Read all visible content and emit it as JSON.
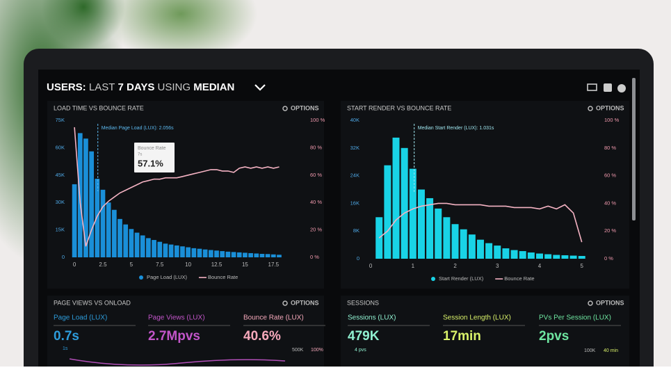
{
  "header": {
    "title_parts": [
      "USERS:",
      "LAST",
      "7 DAYS",
      "USING",
      "MEDIAN"
    ]
  },
  "chart_data": [
    {
      "type": "bar",
      "title": "LOAD TIME VS BOUNCE RATE",
      "options": "OPTIONS",
      "x": [
        0,
        0.5,
        1,
        1.5,
        2,
        2.5,
        3,
        3.5,
        4,
        4.5,
        5,
        5.5,
        6,
        6.5,
        7,
        7.5,
        8,
        8.5,
        9,
        9.5,
        10,
        10.5,
        11,
        11.5,
        12,
        12.5,
        13,
        13.5,
        14,
        14.5,
        15,
        15.5,
        16,
        16.5,
        17,
        17.5,
        18
      ],
      "xlim": [
        -0.25,
        20.05
      ],
      "xticks": [
        0,
        2.5,
        5,
        7.5,
        10,
        12.5,
        15,
        17.5
      ],
      "ylim": [
        0,
        75000
      ],
      "yticks": [
        0,
        {
          "value": 15000,
          "label": "15K"
        },
        {
          "value": 30000,
          "label": "30K"
        },
        {
          "value": 45000,
          "label": "45K"
        },
        {
          "value": 60000,
          "label": "60K"
        },
        {
          "value": 75000,
          "label": "75K"
        }
      ],
      "y2lim": [
        0,
        100
      ],
      "y2ticks": [
        {
          "value": 0,
          "label": "0 %"
        },
        {
          "value": 20,
          "label": "20 %"
        },
        {
          "value": 40,
          "label": "40 %"
        },
        {
          "value": 60,
          "label": "60 %"
        },
        {
          "value": 80,
          "label": "80 %"
        },
        {
          "value": 100,
          "label": "100 %"
        }
      ],
      "series": [
        {
          "name": "Page Load (LUX)",
          "type": "bar",
          "color": "#1a8fd8",
          "values": [
            40000,
            68000,
            65000,
            58000,
            43000,
            37000,
            30000,
            26000,
            21000,
            18000,
            15500,
            13500,
            12000,
            10500,
            9500,
            8500,
            7500,
            7000,
            6500,
            6000,
            5500,
            5000,
            4700,
            4300,
            4000,
            3700,
            3400,
            3100,
            2900,
            2700,
            2500,
            2300,
            2100,
            1900,
            1800,
            1600,
            1400
          ]
        },
        {
          "name": "Bounce Rate",
          "type": "line",
          "axis": "y2",
          "color": "#f5b3c3",
          "values": [
            95,
            40,
            8,
            20,
            30,
            37,
            41,
            44,
            47,
            49,
            51,
            53,
            55,
            56,
            57.1,
            57,
            58,
            58,
            58,
            59,
            60,
            61,
            62,
            63,
            64,
            64,
            63,
            63,
            62,
            65,
            66,
            65,
            66,
            65,
            66,
            65,
            66
          ]
        }
      ],
      "annotation": {
        "text": "Median Page Load (LUX): 2.056s",
        "x": 2.056,
        "color": "#5cb8ee"
      },
      "tooltip": {
        "title": "Bounce Rate",
        "subtitle": "7s",
        "value": "57.1%"
      }
    },
    {
      "type": "bar",
      "title": "START RENDER VS BOUNCE RATE",
      "options": "OPTIONS",
      "x": [
        0.2,
        0.4,
        0.6,
        0.8,
        1,
        1.2,
        1.4,
        1.6,
        1.8,
        2,
        2.2,
        2.4,
        2.6,
        2.8,
        3,
        3.2,
        3.4,
        3.6,
        3.8,
        4,
        4.2,
        4.4,
        4.6,
        4.8,
        5
      ],
      "xlim": [
        -0.1,
        5.35
      ],
      "xticks": [
        0,
        1,
        2,
        3,
        4,
        5
      ],
      "ylim": [
        0,
        40000
      ],
      "yticks": [
        0,
        {
          "value": 8000,
          "label": "8K"
        },
        {
          "value": 16000,
          "label": "16K"
        },
        {
          "value": 24000,
          "label": "24K"
        },
        {
          "value": 32000,
          "label": "32K"
        },
        {
          "value": 40000,
          "label": "40K"
        }
      ],
      "y2lim": [
        0,
        100
      ],
      "y2ticks": [
        {
          "value": 0,
          "label": "0 %"
        },
        {
          "value": 20,
          "label": "20 %"
        },
        {
          "value": 40,
          "label": "40 %"
        },
        {
          "value": 60,
          "label": "60 %"
        },
        {
          "value": 80,
          "label": "80 %"
        },
        {
          "value": 100,
          "label": "100 %"
        }
      ],
      "series": [
        {
          "name": "Start Render (LUX)",
          "type": "bar",
          "color": "#19d3e6",
          "values": [
            12000,
            27000,
            35000,
            32000,
            26000,
            20000,
            17500,
            14500,
            12000,
            10000,
            8500,
            7000,
            5500,
            4500,
            3800,
            3000,
            2500,
            2200,
            1800,
            1500,
            1300,
            1100,
            1000,
            900,
            800
          ]
        },
        {
          "name": "Bounce Rate",
          "type": "line",
          "axis": "y2",
          "color": "#f5b3c3",
          "values": [
            15,
            20,
            28,
            33,
            36,
            38,
            39,
            40,
            40,
            39,
            39,
            39,
            39,
            38,
            38,
            38,
            37,
            37,
            37,
            36,
            38,
            36,
            39,
            33,
            12
          ]
        }
      ],
      "annotation": {
        "text": "Median Start Render (LUX): 1.031s",
        "x": 1.031,
        "color": "#9fe6ef"
      }
    }
  ],
  "panels": [
    {
      "title": "PAGE VIEWS VS ONLOAD",
      "options": "OPTIONS",
      "metrics": [
        {
          "label": "Page Load (LUX)",
          "value": "0.7s",
          "color": "#2d9cdb"
        },
        {
          "label": "Page Views (LUX)",
          "value": "2.7Mpvs",
          "color": "#c255c9"
        },
        {
          "label": "Bounce Rate (LUX)",
          "value": "40.6%",
          "color": "#f6a9bb"
        }
      ],
      "axis_labels": [
        "1s",
        "500K",
        "100%"
      ]
    },
    {
      "title": "SESSIONS",
      "options": "OPTIONS",
      "metrics": [
        {
          "label": "Sessions (LUX)",
          "value": "479K",
          "color": "#8ff0d0"
        },
        {
          "label": "Session Length (LUX)",
          "value": "17min",
          "color": "#d9f26a"
        },
        {
          "label": "PVs Per Session (LUX)",
          "value": "2pvs",
          "color": "#6ee6a0"
        }
      ],
      "axis_labels": [
        "4 pvs",
        "100K",
        "40 min"
      ]
    }
  ]
}
